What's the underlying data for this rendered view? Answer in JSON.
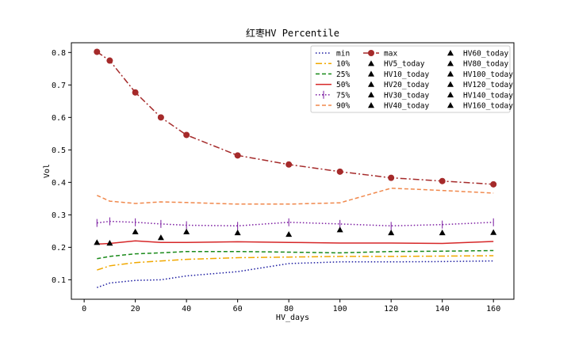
{
  "chart_data": {
    "type": "line",
    "title": "红枣HV Percentile",
    "xlabel": "HV_days",
    "ylabel": "Vol",
    "xlim": [
      -5,
      168
    ],
    "ylim": [
      0.04,
      0.83
    ],
    "xticks": [
      0,
      20,
      40,
      60,
      80,
      100,
      120,
      140,
      160
    ],
    "yticks": [
      0.1,
      0.2,
      0.3,
      0.4,
      0.5,
      0.6,
      0.7,
      0.8
    ],
    "x": [
      5,
      10,
      20,
      30,
      40,
      60,
      80,
      100,
      120,
      140,
      160
    ],
    "series": [
      {
        "name": "min",
        "color": "#1a1aa0",
        "style": "dotted",
        "values": [
          0.076,
          0.09,
          0.098,
          0.1,
          0.112,
          0.125,
          0.15,
          0.155,
          0.155,
          0.156,
          0.158
        ]
      },
      {
        "name": "10%",
        "color": "#f0a800",
        "style": "dashdot",
        "values": [
          0.13,
          0.143,
          0.153,
          0.158,
          0.163,
          0.168,
          0.17,
          0.172,
          0.172,
          0.173,
          0.174
        ]
      },
      {
        "name": "25%",
        "color": "#1a8a1a",
        "style": "dashed",
        "values": [
          0.165,
          0.172,
          0.18,
          0.183,
          0.187,
          0.187,
          0.185,
          0.183,
          0.187,
          0.188,
          0.19
        ]
      },
      {
        "name": "50%",
        "color": "#d62728",
        "style": "solid",
        "values": [
          0.21,
          0.212,
          0.22,
          0.215,
          0.215,
          0.217,
          0.215,
          0.213,
          0.213,
          0.212,
          0.218
        ]
      },
      {
        "name": "75%",
        "color": "#7a1aa0",
        "style": "dotted-vline",
        "values": [
          0.275,
          0.28,
          0.277,
          0.272,
          0.268,
          0.266,
          0.277,
          0.272,
          0.266,
          0.27,
          0.277
        ]
      },
      {
        "name": "90%",
        "color": "#f0884c",
        "style": "dashed",
        "values": [
          0.36,
          0.342,
          0.335,
          0.34,
          0.338,
          0.333,
          0.333,
          0.337,
          0.382,
          0.375,
          0.367
        ]
      },
      {
        "name": "max",
        "color": "#a52a2a",
        "style": "dashdot-marker",
        "values": [
          0.802,
          0.775,
          0.677,
          0.6,
          0.546,
          0.483,
          0.455,
          0.433,
          0.414,
          0.404,
          0.394
        ]
      }
    ],
    "today": [
      {
        "name": "HV5_today",
        "x": 5,
        "y": 0.215
      },
      {
        "name": "HV10_today",
        "x": 10,
        "y": 0.213
      },
      {
        "name": "HV20_today",
        "x": 20,
        "y": 0.248
      },
      {
        "name": "HV30_today",
        "x": 30,
        "y": 0.23
      },
      {
        "name": "HV40_today",
        "x": 40,
        "y": 0.248
      },
      {
        "name": "HV60_today",
        "x": 60,
        "y": 0.245
      },
      {
        "name": "HV80_today",
        "x": 80,
        "y": 0.24
      },
      {
        "name": "HV100_today",
        "x": 100,
        "y": 0.254
      },
      {
        "name": "HV120_today",
        "x": 120,
        "y": 0.245
      },
      {
        "name": "HV140_today",
        "x": 140,
        "y": 0.245
      },
      {
        "name": "HV160_today",
        "x": 160,
        "y": 0.246
      }
    ],
    "legend_position": "top-right",
    "grid": false
  }
}
